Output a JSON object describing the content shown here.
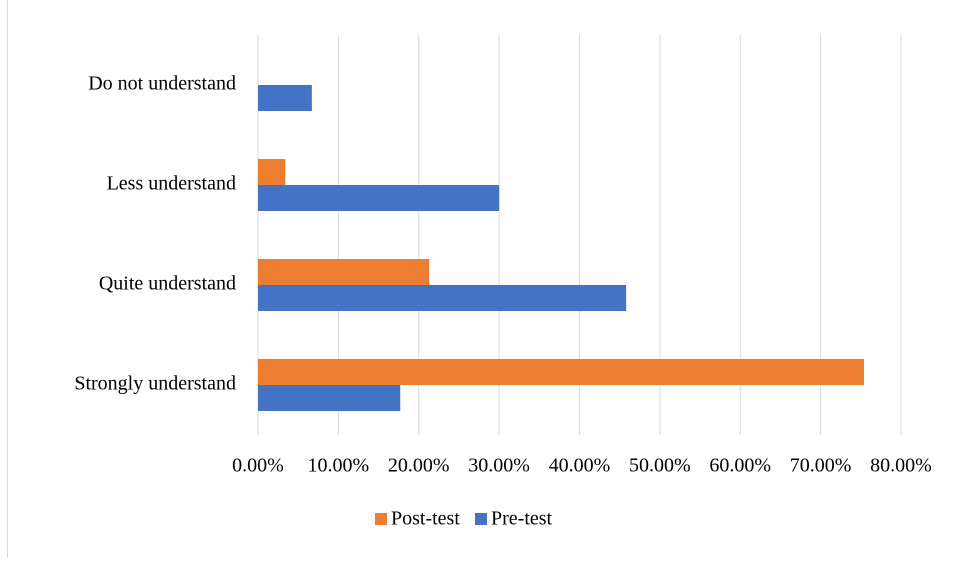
{
  "chart_data": {
    "type": "bar",
    "orientation": "horizontal",
    "categories": [
      "Do not understand",
      "Less understand",
      "Quite understand",
      "Strongly understand"
    ],
    "series": [
      {
        "name": "Post-test",
        "color": "#ed7d31",
        "values": [
          0,
          3.4,
          21.3,
          75.4
        ]
      },
      {
        "name": "Pre-test",
        "color": "#4472c4",
        "values": [
          6.7,
          30,
          45.8,
          17.7
        ]
      }
    ],
    "xlim": [
      0,
      80
    ],
    "xticks": [
      {
        "value": 0,
        "label": "0.00%"
      },
      {
        "value": 10,
        "label": "10.00%"
      },
      {
        "value": 20,
        "label": "20.00%"
      },
      {
        "value": 30,
        "label": "30.00%"
      },
      {
        "value": 40,
        "label": "40.00%"
      },
      {
        "value": 50,
        "label": "50.00%"
      },
      {
        "value": 60,
        "label": "60.00%"
      },
      {
        "value": 70,
        "label": "70.00%"
      },
      {
        "value": 80,
        "label": "80.00%"
      }
    ],
    "grid": true,
    "legend": "bottom"
  }
}
